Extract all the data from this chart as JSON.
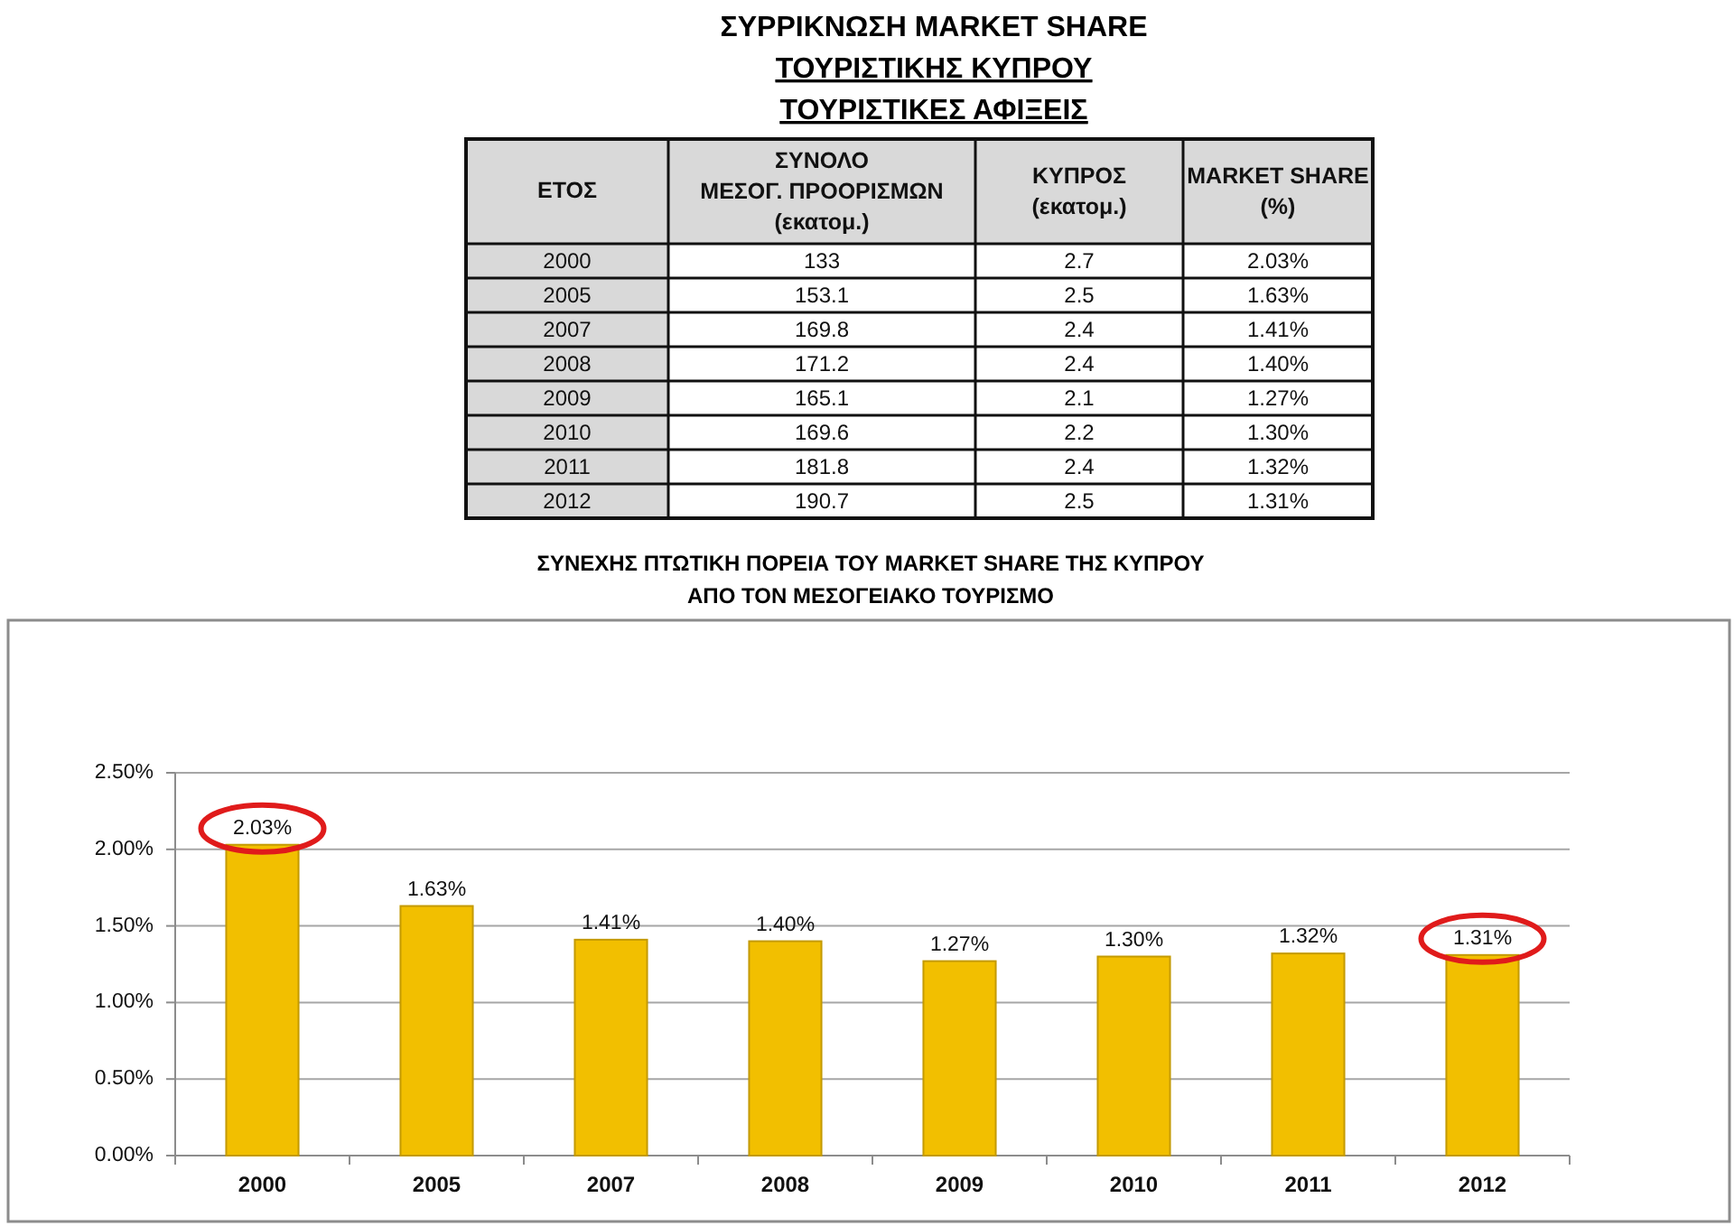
{
  "chart_data": [
    {
      "type": "heatmap",
      "title": "ΣΥΡΡΙΚΝΩΣΗ MARKET SHARE",
      "subtitle": "ΤΟΥΡΙΣΤΙΚΗΣ ΚΥΠΡΟΥ\nΤΟΥΡΙΣΤΙΚΕΣ ΑΦΙΞΕΙΣ",
      "ylabel": "ΕΤΟΣ",
      "categories": [
        "ΣΥΝΟΛΟ\nΜΕΣΟΓ. ΠΡΟΟΡΙΣΜΩΝ\n(εκατομ.)",
        "ΚΥΠΡΟΣ\n(εκατομ.)",
        "MARKET SHARE\n(%)"
      ],
      "y_categories": [
        "2000",
        "2005",
        "2007",
        "2008",
        "2009",
        "2010",
        "2011",
        "2012"
      ],
      "cells": [
        [
          null,
          null,
          null
        ],
        [
          null,
          null,
          null
        ],
        [
          null,
          null,
          null
        ],
        [
          null,
          null,
          null
        ],
        [
          null,
          null,
          null
        ],
        [
          null,
          null,
          null
        ],
        [
          null,
          null,
          null
        ],
        [
          null,
          null,
          null
        ]
      ],
      "cell_labels": [
        [
          "133",
          "2.7",
          "2.03%"
        ],
        [
          "153.1",
          "2.5",
          "1.63%"
        ],
        [
          "169.8",
          "2.4",
          "1.41%"
        ],
        [
          "171.2",
          "2.4",
          "1.40%"
        ],
        [
          "165.1",
          "2.1",
          "1.27%"
        ],
        [
          "169.6",
          "2.2",
          "1.30%"
        ],
        [
          "181.8",
          "2.4",
          "1.32%"
        ],
        [
          "190.7",
          "2.5",
          "1.31%"
        ]
      ]
    },
    {
      "type": "bar",
      "title": "ΣΥΝΕΧΗΣ ΠΤΩΤΙΚΗ ΠΟΡΕΙΑ ΤΟΥ MARKET SHARE ΤΗΣ ΚΥΠΡΟΥ",
      "subtitle": "ΑΠΟ ΤΟΝ ΜΕΣΟΓΕΙΑΚΟ ΤΟΥΡΙΣΜΟ",
      "categories": [
        "2000",
        "2005",
        "2007",
        "2008",
        "2009",
        "2010",
        "2011",
        "2012"
      ],
      "values": [
        2.03,
        1.63,
        1.41,
        1.4,
        1.27,
        1.3,
        1.32,
        1.31
      ],
      "value_labels": [
        "2.03%",
        "1.63%",
        "1.41%",
        "1.40%",
        "1.27%",
        "1.30%",
        "1.32%",
        "1.31%"
      ],
      "color": "#f2bf00",
      "ylim": [
        0,
        2.5
      ],
      "yticks": [
        {
          "value": 0,
          "label": "0.00%"
        },
        {
          "value": 0.5,
          "label": "0.50%"
        },
        {
          "value": 1,
          "label": "1.00%"
        },
        {
          "value": 1.5,
          "label": "1.50%"
        },
        {
          "value": 2,
          "label": "2.00%"
        },
        {
          "value": 2.5,
          "label": "2.50%"
        }
      ],
      "grid": "y"
    }
  ]
}
